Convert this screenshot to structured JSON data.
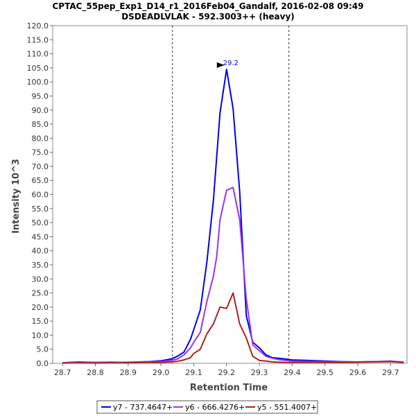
{
  "chart_data": {
    "type": "line",
    "title": "CPTAC_55pep_Exp1_D14_r1_2016Feb04_Gandalf, 2016-02-08 09:49",
    "subtitle": "DSDEADLVLAK - 592.3003++ (heavy)",
    "xlabel": "Retention Time",
    "ylabel": "Intensity 10^3",
    "xlim": [
      28.67,
      29.75
    ],
    "ylim": [
      0,
      120
    ],
    "x_ticks": [
      "28.7",
      "28.8",
      "28.9",
      "29.0",
      "29.1",
      "29.2",
      "29.3",
      "29.4",
      "29.5",
      "29.6",
      "29.7"
    ],
    "y_ticks": [
      "0.0",
      "5.0",
      "10.0",
      "15.0",
      "20.0",
      "25.0",
      "30.0",
      "35.0",
      "40.0",
      "45.0",
      "50.0",
      "55.0",
      "60.0",
      "65.0",
      "70.0",
      "75.0",
      "80.0",
      "85.0",
      "90.0",
      "95.0",
      "100.0",
      "105.0",
      "110.0",
      "115.0",
      "120.0"
    ],
    "grid": false,
    "legend_position": "bottom",
    "vlines": [
      29.035,
      29.39
    ],
    "peak_annotation": {
      "x": 29.2,
      "y": 104.5,
      "label": "29.2",
      "color": "#0000cc"
    },
    "series": [
      {
        "name": "y7 - 737.4647+",
        "color": "#0000ee",
        "x": [
          28.7,
          28.75,
          28.8,
          28.85,
          28.9,
          28.95,
          29.0,
          29.03,
          29.05,
          29.07,
          29.09,
          29.1,
          29.12,
          29.14,
          29.16,
          29.17,
          29.18,
          29.2,
          29.22,
          29.24,
          29.26,
          29.28,
          29.3,
          29.32,
          29.34,
          29.36,
          29.38,
          29.4,
          29.45,
          29.5,
          29.55,
          29.6,
          29.65,
          29.7,
          29.74
        ],
        "values": [
          0.2,
          0.5,
          0.3,
          0.4,
          0.3,
          0.5,
          0.9,
          1.5,
          2.5,
          4.0,
          8.5,
          12.0,
          19.0,
          36.0,
          58.0,
          73.5,
          89.0,
          104.5,
          90.5,
          61.0,
          17.0,
          7.5,
          5.5,
          3.0,
          2.0,
          1.8,
          1.5,
          1.2,
          1.0,
          0.8,
          0.6,
          0.5,
          0.6,
          0.7,
          0.4
        ]
      },
      {
        "name": "y6 - 666.4276+",
        "color": "#9933ee",
        "x": [
          28.7,
          28.75,
          28.8,
          28.85,
          28.9,
          28.95,
          29.0,
          29.03,
          29.05,
          29.07,
          29.09,
          29.1,
          29.12,
          29.14,
          29.16,
          29.17,
          29.18,
          29.2,
          29.22,
          29.24,
          29.26,
          29.28,
          29.3,
          29.32,
          29.34,
          29.36,
          29.38,
          29.4,
          29.45,
          29.5,
          29.55,
          29.6,
          29.65,
          29.7,
          29.74
        ],
        "values": [
          0.2,
          0.4,
          0.3,
          0.3,
          0.4,
          0.6,
          0.7,
          1.0,
          1.5,
          3.0,
          5.5,
          7.5,
          11.0,
          22.0,
          31.0,
          38.0,
          51.0,
          61.5,
          62.5,
          51.0,
          23.0,
          6.5,
          4.5,
          2.5,
          1.8,
          1.3,
          1.0,
          0.8,
          0.7,
          0.6,
          0.5,
          0.5,
          0.6,
          0.8,
          0.4
        ]
      },
      {
        "name": "y5 - 551.4007+",
        "color": "#aa2222",
        "x": [
          28.7,
          28.75,
          28.8,
          28.85,
          28.9,
          28.95,
          29.0,
          29.03,
          29.05,
          29.07,
          29.09,
          29.1,
          29.12,
          29.14,
          29.16,
          29.17,
          29.18,
          29.2,
          29.22,
          29.24,
          29.26,
          29.28,
          29.3,
          29.32,
          29.34,
          29.36,
          29.38,
          29.4,
          29.45,
          29.5,
          29.55,
          29.6,
          29.65,
          29.7,
          29.74
        ],
        "values": [
          0.1,
          0.2,
          0.1,
          0.2,
          0.2,
          0.3,
          0.3,
          0.5,
          0.7,
          1.2,
          2.0,
          3.5,
          5.0,
          10.5,
          14.0,
          17.0,
          20.0,
          19.5,
          25.0,
          14.0,
          9.0,
          2.5,
          1.0,
          0.8,
          0.5,
          0.4,
          0.3,
          0.3,
          0.4,
          0.3,
          0.3,
          0.4,
          0.5,
          0.6,
          0.3
        ]
      }
    ]
  }
}
